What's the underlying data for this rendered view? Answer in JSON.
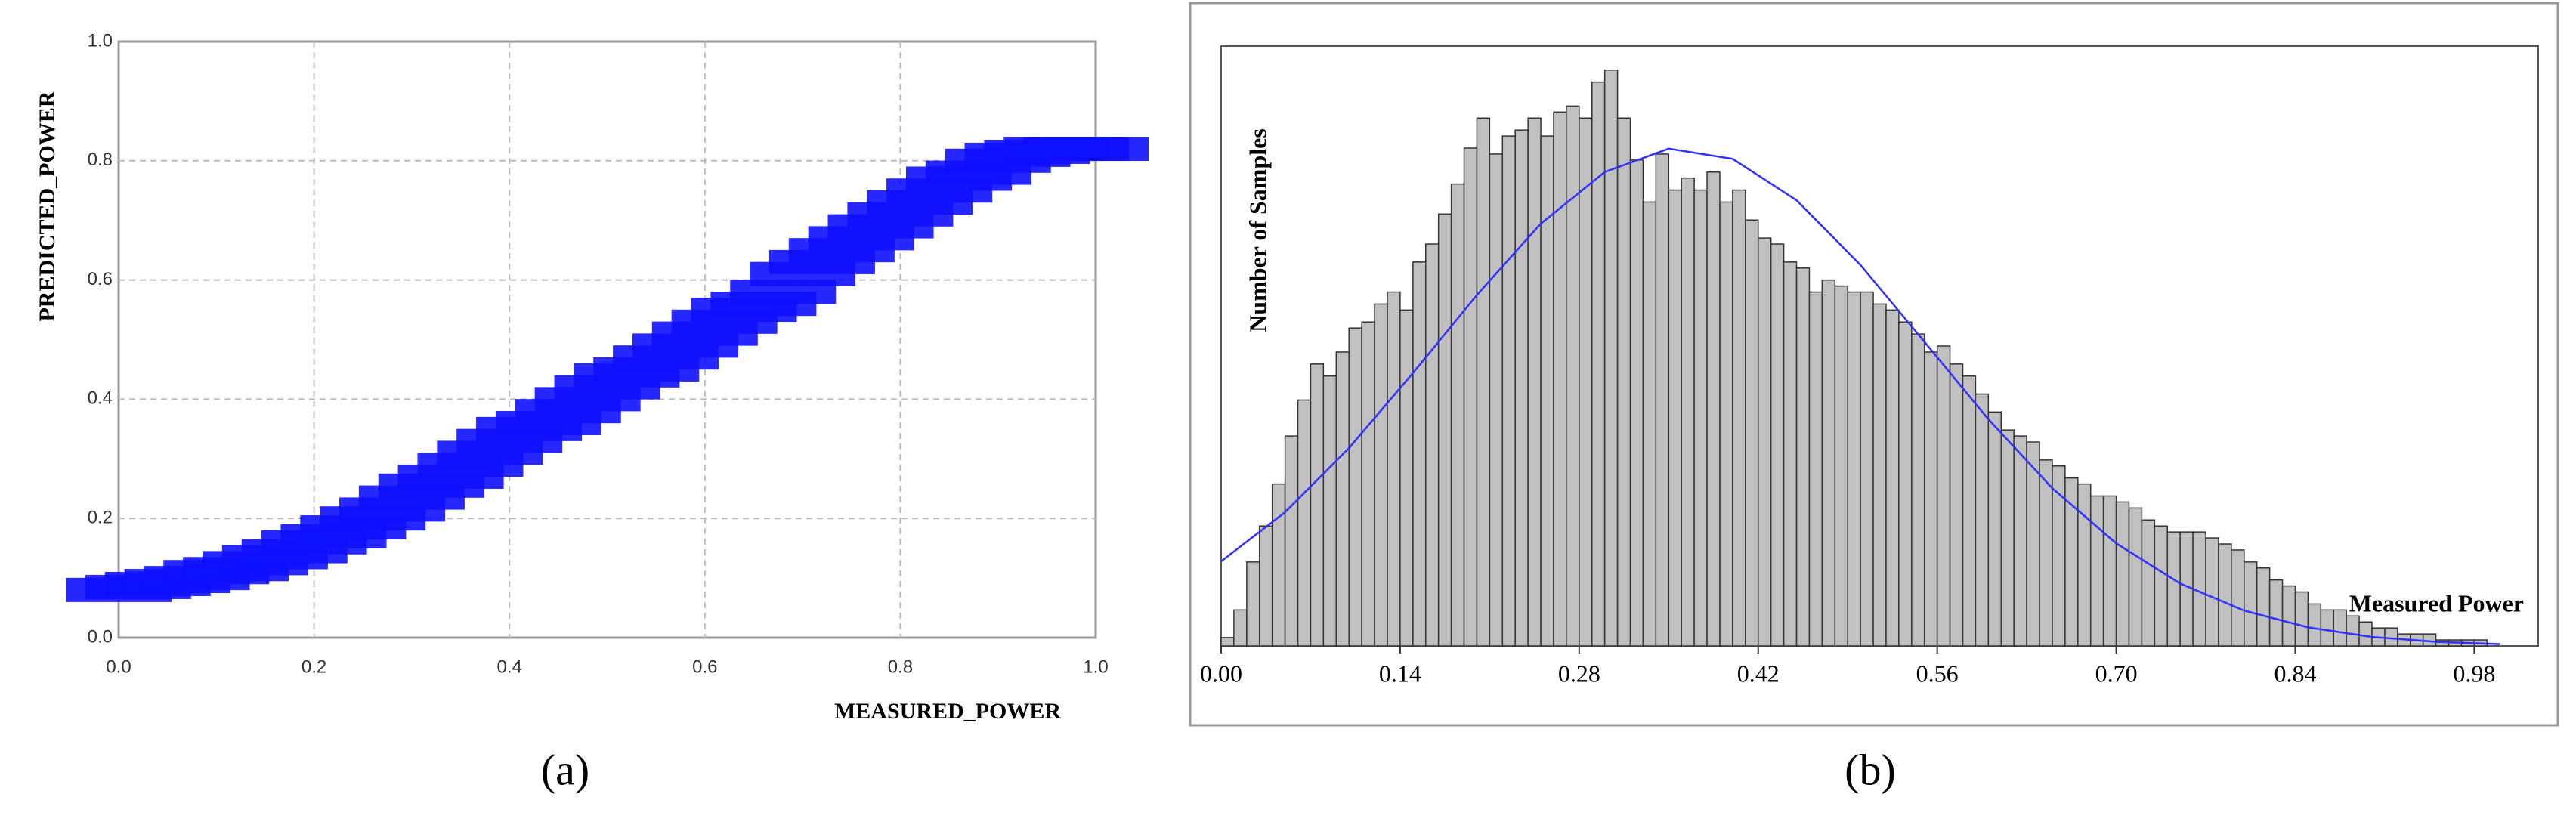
{
  "chart_data": [
    {
      "type": "scatter",
      "caption": "(a)",
      "xlabel": "MEASURED_POWER",
      "ylabel": "PREDICTED_POWER",
      "color": "#1010ff",
      "grid": true,
      "xlim": [
        0,
        1
      ],
      "ylim": [
        0,
        1
      ],
      "xticks": [
        {
          "value": 0,
          "label": "0.0"
        },
        0.2,
        0.4,
        0.6,
        0.8,
        {
          "value": 1,
          "label": "1.0"
        }
      ],
      "yticks": [
        {
          "value": 0,
          "label": "0.0"
        },
        0.2,
        0.4,
        0.6,
        0.8,
        {
          "value": 1,
          "label": "1.0"
        }
      ],
      "x": [
        0,
        0.02,
        0.04,
        0.06,
        0.08,
        0.1,
        0.12,
        0.14,
        0.16,
        0.18,
        0.2,
        0.22,
        0.24,
        0.26,
        0.28,
        0.3,
        0.32,
        0.34,
        0.36,
        0.38,
        0.4,
        0.42,
        0.44,
        0.46,
        0.48,
        0.5,
        0.52,
        0.54,
        0.56,
        0.58,
        0.6,
        0.62,
        0.64,
        0.66,
        0.68,
        0.7,
        0.72,
        0.74,
        0.76,
        0.78,
        0.8,
        0.82,
        0.84,
        0.86,
        0.88,
        0.9,
        0.92,
        0.94,
        0.96,
        0.98,
        1
      ],
      "values": [
        0.08,
        0.085,
        0.09,
        0.095,
        0.1,
        0.11,
        0.115,
        0.125,
        0.135,
        0.145,
        0.16,
        0.17,
        0.185,
        0.2,
        0.215,
        0.235,
        0.255,
        0.27,
        0.29,
        0.31,
        0.33,
        0.35,
        0.36,
        0.38,
        0.4,
        0.42,
        0.44,
        0.45,
        0.47,
        0.49,
        0.51,
        0.53,
        0.55,
        0.56,
        0.58,
        0.61,
        0.63,
        0.65,
        0.67,
        0.69,
        0.71,
        0.73,
        0.75,
        0.77,
        0.78,
        0.8,
        0.81,
        0.815,
        0.82,
        0.82,
        0.82
      ]
    },
    {
      "type": "histogram",
      "caption": "(b)",
      "xlabel": "Measured Power",
      "ylabel": "Number  of Samples",
      "color": "#c0c0c0",
      "xlim": [
        0,
        1.03
      ],
      "ylim": [
        0,
        100
      ],
      "xticks": [
        {
          "value": 0,
          "label": "0.00"
        },
        0.14,
        0.28,
        0.42,
        0.56,
        {
          "value": 0.7,
          "label": "0.70"
        },
        0.84,
        0.98
      ],
      "bins": [
        0,
        0.01,
        0.02,
        0.03,
        0.04,
        0.05,
        0.06,
        0.07,
        0.08,
        0.09,
        0.1,
        0.11,
        0.12,
        0.13,
        0.14,
        0.15,
        0.16,
        0.17,
        0.18,
        0.19,
        0.2,
        0.21,
        0.22,
        0.23,
        0.24,
        0.25,
        0.26,
        0.27,
        0.28,
        0.29,
        0.3,
        0.31,
        0.32,
        0.33,
        0.34,
        0.35,
        0.36,
        0.37,
        0.38,
        0.39,
        0.4,
        0.41,
        0.42,
        0.43,
        0.44,
        0.45,
        0.46,
        0.47,
        0.48,
        0.49,
        0.5,
        0.51,
        0.52,
        0.53,
        0.54,
        0.55,
        0.56,
        0.57,
        0.58,
        0.59,
        0.6,
        0.61,
        0.62,
        0.63,
        0.64,
        0.65,
        0.66,
        0.67,
        0.68,
        0.69,
        0.7,
        0.71,
        0.72,
        0.73,
        0.74,
        0.75,
        0.76,
        0.77,
        0.78,
        0.79,
        0.8,
        0.81,
        0.82,
        0.83,
        0.84,
        0.85,
        0.86,
        0.87,
        0.88,
        0.89,
        0.9,
        0.91,
        0.92,
        0.93,
        0.94,
        0.95,
        0.96,
        0.97,
        0.98,
        0.99,
        1
      ],
      "counts": [
        1.4,
        6,
        14,
        20,
        27,
        35,
        41,
        47,
        45,
        49,
        53,
        54,
        57,
        59,
        56,
        64,
        67,
        72,
        77,
        83,
        88,
        82,
        85,
        86,
        88,
        85,
        89,
        90,
        88,
        94,
        96,
        88,
        81,
        74,
        82,
        76,
        78,
        76,
        79,
        74,
        76,
        71,
        68,
        67,
        64,
        63,
        59,
        61,
        60,
        59,
        59,
        57,
        56,
        54,
        52,
        49,
        50,
        47,
        45,
        42,
        39,
        36,
        35,
        34,
        31,
        30,
        28,
        27,
        25,
        25,
        24,
        23,
        21,
        20,
        19,
        19,
        19,
        18,
        17,
        16,
        14,
        13,
        11,
        10,
        9,
        7,
        6,
        6,
        5,
        4,
        3,
        3,
        2,
        2,
        2,
        1,
        1,
        1,
        1,
        0
      ],
      "line": {
        "color": "#3030ff",
        "x": [
          0,
          0.05,
          0.1,
          0.15,
          0.2,
          0.25,
          0.3,
          0.35,
          0.4,
          0.45,
          0.5,
          0.55,
          0.6,
          0.65,
          0.7,
          0.75,
          0.8,
          0.85,
          0.9,
          0.95,
          1
        ],
        "values": [
          14.1,
          22.3,
          33,
          45.5,
          58.5,
          70.4,
          79,
          82.9,
          81.2,
          74.3,
          63.5,
          50.7,
          37.8,
          26.3,
          17.1,
          10.4,
          5.9,
          3.1,
          1.5,
          0.7,
          0.3
        ]
      }
    }
  ]
}
